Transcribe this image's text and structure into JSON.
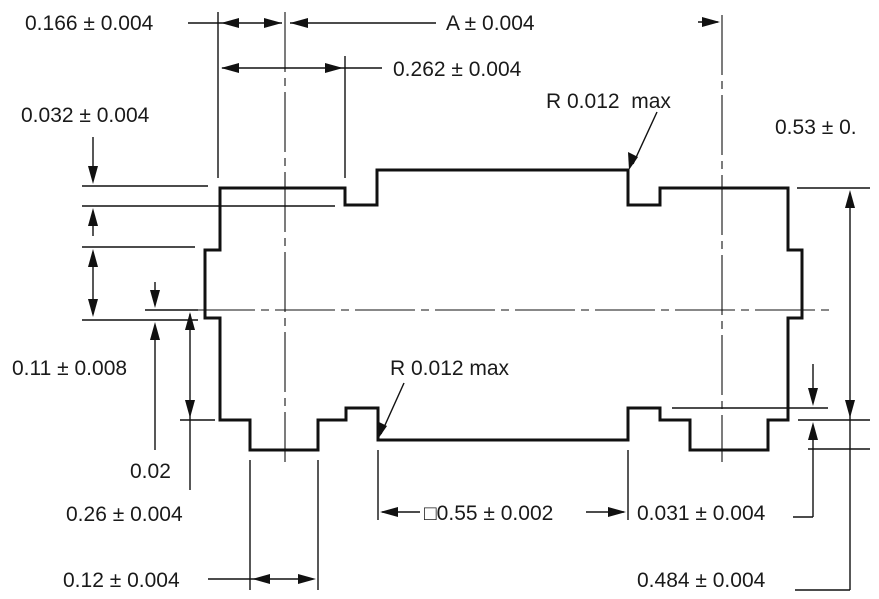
{
  "labels": {
    "width_0166": "0.166 ± 0.004",
    "a": "A ± 0.004",
    "width_0262": "0.262 ± 0.004",
    "radius_top": "R 0.012  max",
    "step_0032": "0.032 ± 0.004",
    "height_053": "0.53 ± 0.",
    "gap_011": "0.11 ± 0.008",
    "radius_bottom": "R 0.012 max",
    "dist_002": "0.02",
    "width_026": "0.26 ± 0.004",
    "square_055": "□0.55 ± 0.002",
    "step_0031": "0.031 ± 0.004",
    "width_012": "0.12 ± 0.004",
    "height_0484": "0.484 ± 0.004"
  }
}
